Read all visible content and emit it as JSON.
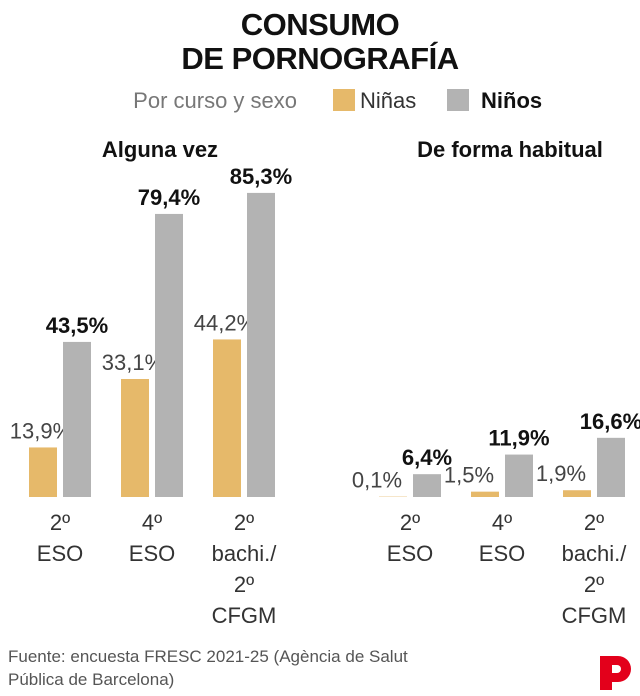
{
  "title": "CONSUMO\nDE PORNOGRAFÍA",
  "subtitle": "Por curso y sexo",
  "source": "Fuente: encuesta FRESC 2021-25 (Agència de Salut\nPública de Barcelona)",
  "chart_data": [
    {
      "type": "bar",
      "title": "Alguna vez",
      "categories": [
        "2º\nESO",
        "4º\nESO",
        "2º\nbachi./\n2º\nCFGM"
      ],
      "series": [
        {
          "name": "Niñas",
          "color": "#e6b96a",
          "values": [
            13.9,
            33.1,
            44.2
          ],
          "value_labels": [
            "13,9%",
            "33,1%",
            "44,2%"
          ]
        },
        {
          "name": "Niños",
          "color": "#b3b3b3",
          "values": [
            43.5,
            79.4,
            85.3
          ],
          "value_labels": [
            "43,5%",
            "79,4%",
            "85,3%"
          ]
        }
      ]
    },
    {
      "type": "bar",
      "title": "De forma habitual",
      "categories": [
        "2º\nESO",
        "4º\nESO",
        "2º\nbachi./\n2º\nCFGM"
      ],
      "series": [
        {
          "color": "#e6b96a",
          "values": [
            0.1,
            1.5,
            1.9
          ],
          "value_labels": [
            "0,1%",
            "1,5%",
            "1,9%"
          ]
        },
        {
          "color": "#b3b3b3",
          "values": [
            6.4,
            11.9,
            16.6
          ],
          "value_labels": [
            "6,4%",
            "11,9%",
            "16,6%"
          ]
        }
      ]
    }
  ]
}
